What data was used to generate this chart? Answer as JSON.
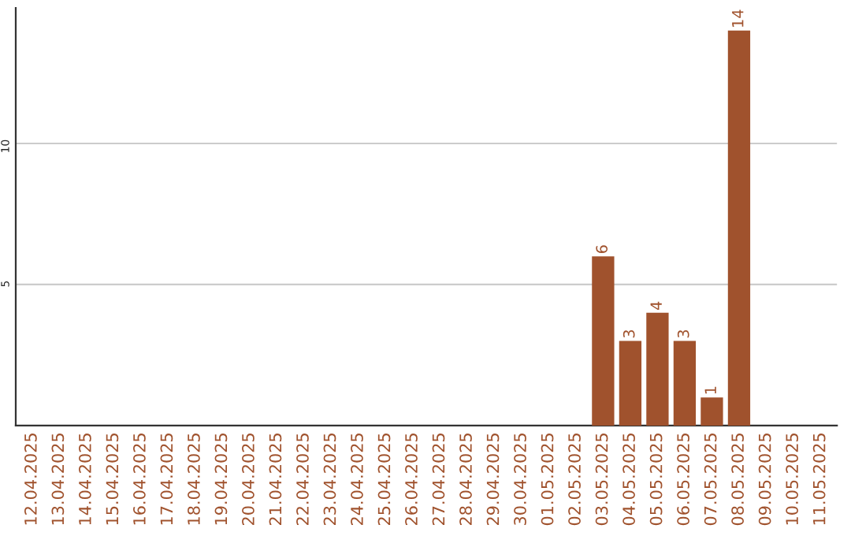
{
  "chart_data": {
    "type": "bar",
    "categories": [
      "12.04.2025",
      "13.04.2025",
      "14.04.2025",
      "15.04.2025",
      "16.04.2025",
      "17.04.2025",
      "18.04.2025",
      "19.04.2025",
      "20.04.2025",
      "21.04.2025",
      "22.04.2025",
      "23.04.2025",
      "24.04.2025",
      "25.04.2025",
      "26.04.2025",
      "27.04.2025",
      "28.04.2025",
      "29.04.2025",
      "30.04.2025",
      "01.05.2025",
      "02.05.2025",
      "03.05.2025",
      "04.05.2025",
      "05.05.2025",
      "06.05.2025",
      "07.05.2025",
      "08.05.2025",
      "09.05.2025",
      "10.05.2025",
      "11.05.2025"
    ],
    "values": [
      0,
      0,
      0,
      0,
      0,
      0,
      0,
      0,
      0,
      0,
      0,
      0,
      0,
      0,
      0,
      0,
      0,
      0,
      0,
      0,
      0,
      6,
      3,
      4,
      3,
      1,
      14,
      0,
      0,
      0
    ],
    "value_labels": [
      null,
      null,
      null,
      null,
      null,
      null,
      null,
      null,
      null,
      null,
      null,
      null,
      null,
      null,
      null,
      null,
      null,
      null,
      null,
      null,
      null,
      "6",
      "3",
      "4",
      "3",
      "1",
      "14",
      null,
      null,
      null
    ],
    "color": "#a0522d",
    "ylim": [
      0,
      14.8
    ],
    "yticks": [
      5,
      10
    ],
    "grid": "y"
  }
}
